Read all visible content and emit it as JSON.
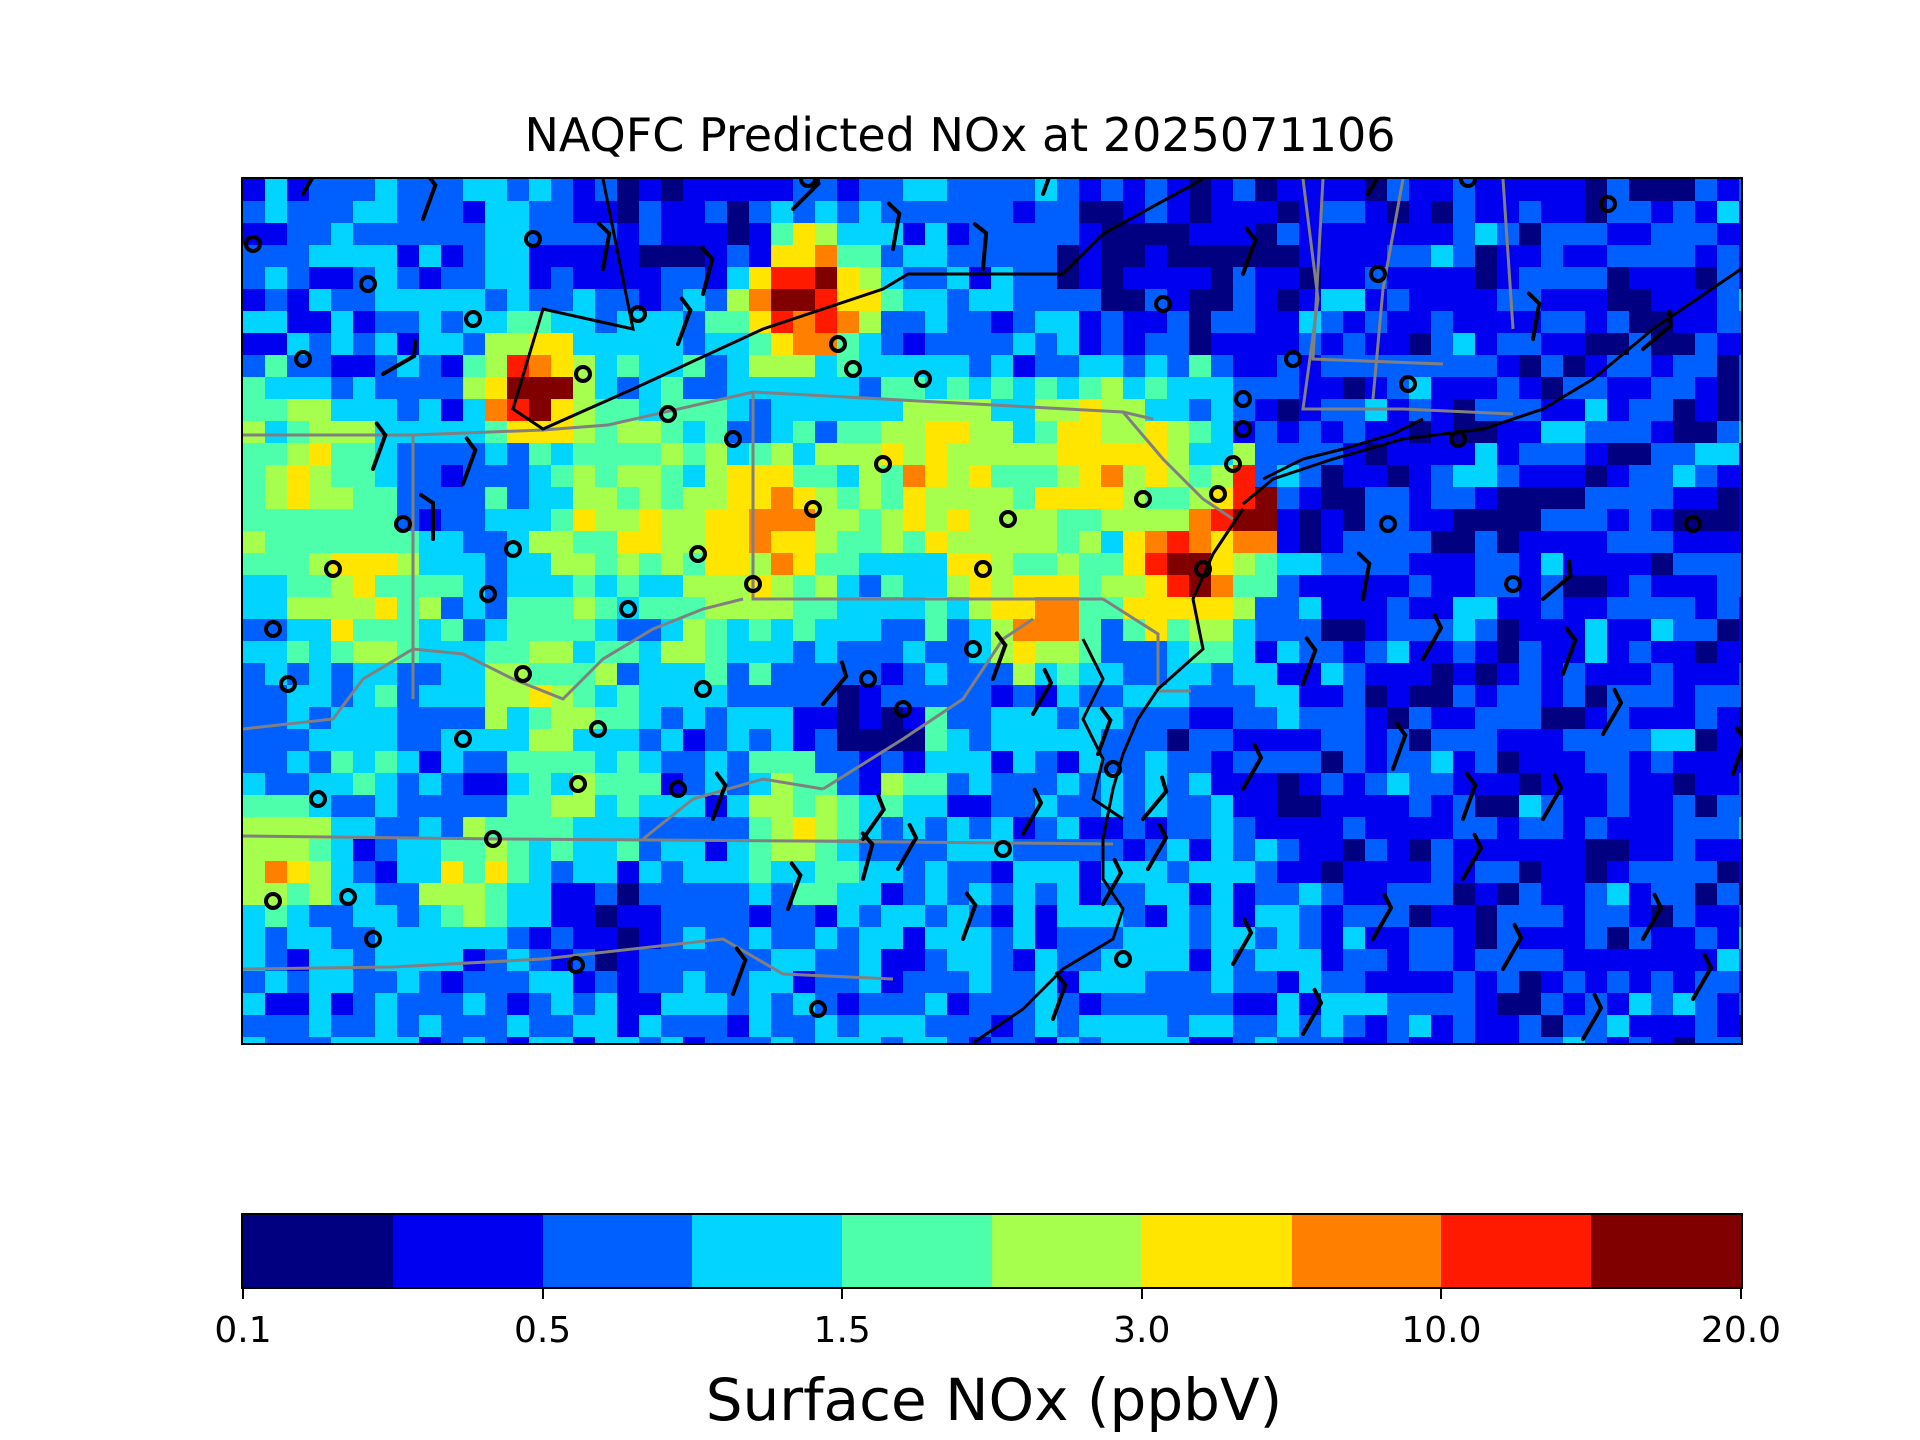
{
  "title": "NAQFC Predicted NOx at 2025071106",
  "map": {
    "variable": "Surface NOx",
    "units": "ppbV",
    "colormap": "jet (discrete, 10 bins)",
    "overlays": [
      "state boundaries",
      "coastlines",
      "wind barbs",
      "monitor site markers"
    ],
    "coastline_color": "#000000",
    "state_border_color": "#808080",
    "site_marker": "circle-icon",
    "wind_barb": "wind-barb-icon"
  },
  "colorbar": {
    "label": "Surface NOx (ppbV)",
    "tick_labels": [
      "0.1",
      "0.5",
      "1.5",
      "3.0",
      "10.0",
      "20.0"
    ],
    "bins": 10,
    "colors": [
      "#000080",
      "#0000f1",
      "#0060ff",
      "#00d4ff",
      "#4dffaa",
      "#a6ff4d",
      "#ffe500",
      "#ff7f00",
      "#ff1a00",
      "#800000"
    ]
  }
}
